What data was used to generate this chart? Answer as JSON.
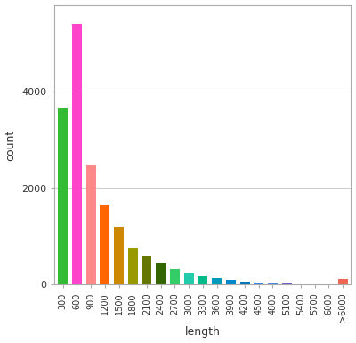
{
  "categories": [
    "300",
    "600",
    "900",
    "1200",
    "1500",
    "1800",
    "2100",
    "2400",
    "2700",
    "3000",
    "3300",
    "3600",
    "3900",
    "4200",
    "4500",
    "4800",
    "5100",
    "5400",
    "5700",
    "6000",
    ">6000"
  ],
  "values": [
    3650,
    5400,
    2480,
    1650,
    1200,
    760,
    600,
    440,
    310,
    250,
    165,
    125,
    95,
    65,
    45,
    30,
    20,
    12,
    7,
    4,
    115
  ],
  "bar_colors": [
    "#33bb33",
    "#ff44cc",
    "#ff8888",
    "#ff6600",
    "#cc8800",
    "#999900",
    "#667700",
    "#336600",
    "#33cc66",
    "#22ccaa",
    "#00bb88",
    "#0099bb",
    "#0088cc",
    "#0077bb",
    "#3388ee",
    "#4488dd",
    "#7755cc",
    "#9944bb",
    "#bb44bb",
    "#cc44cc",
    "#ee6655"
  ],
  "xlabel": "length",
  "ylabel": "count",
  "ylim_max": 5800,
  "ytick_vals": [
    0,
    2000,
    4000
  ],
  "background_color": "#ffffff",
  "figure_width": 4.0,
  "figure_height": 3.86,
  "dpi": 100
}
